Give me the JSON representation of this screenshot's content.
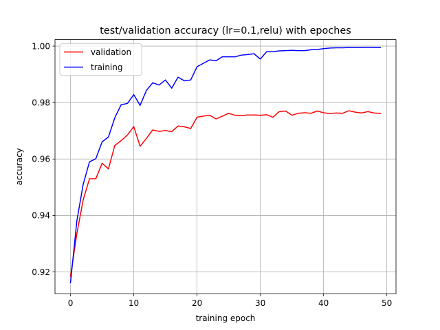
{
  "chart_data": {
    "type": "line",
    "title": "test/validation accuracy (lr=0.1,relu) with epoches",
    "xlabel": "training epoch",
    "ylabel": "accuracy",
    "xlim": [
      -2.45,
      51.45
    ],
    "ylim": [
      0.9123,
      1.0023
    ],
    "xticks": [
      0,
      10,
      20,
      30,
      40,
      50
    ],
    "xtick_labels": [
      "0",
      "10",
      "20",
      "30",
      "40",
      "50"
    ],
    "yticks": [
      0.92,
      0.94,
      0.96,
      0.98,
      1.0
    ],
    "ytick_labels": [
      "0.92",
      "0.94",
      "0.96",
      "0.98",
      "1.00"
    ],
    "grid": true,
    "legend_position": "top-left",
    "x": [
      0,
      1,
      2,
      3,
      4,
      5,
      6,
      7,
      8,
      9,
      10,
      11,
      12,
      13,
      14,
      15,
      16,
      17,
      18,
      19,
      20,
      21,
      22,
      23,
      24,
      25,
      26,
      27,
      28,
      29,
      30,
      31,
      32,
      33,
      34,
      35,
      36,
      37,
      38,
      39,
      40,
      41,
      42,
      43,
      44,
      45,
      46,
      47,
      48,
      49
    ],
    "series": [
      {
        "name": "validation",
        "color": "#ff0000",
        "values": [
          0.9184,
          0.9335,
          0.9455,
          0.953,
          0.953,
          0.9585,
          0.9565,
          0.9648,
          0.9665,
          0.9685,
          0.9715,
          0.9645,
          0.9673,
          0.9703,
          0.9698,
          0.9701,
          0.9697,
          0.9717,
          0.9714,
          0.9708,
          0.9748,
          0.9752,
          0.9755,
          0.9742,
          0.9752,
          0.9762,
          0.9755,
          0.9754,
          0.9756,
          0.9756,
          0.9755,
          0.9757,
          0.9748,
          0.9768,
          0.977,
          0.9755,
          0.9762,
          0.9764,
          0.9762,
          0.977,
          0.9764,
          0.9761,
          0.9763,
          0.9762,
          0.9771,
          0.9766,
          0.9763,
          0.9768,
          0.9763,
          0.9762
        ]
      },
      {
        "name": "training",
        "color": "#0000ff",
        "values": [
          0.9162,
          0.938,
          0.951,
          0.959,
          0.9601,
          0.9661,
          0.9678,
          0.9746,
          0.9792,
          0.9797,
          0.9828,
          0.979,
          0.9843,
          0.987,
          0.9862,
          0.988,
          0.9851,
          0.989,
          0.9877,
          0.988,
          0.9927,
          0.9939,
          0.9951,
          0.9948,
          0.9962,
          0.9962,
          0.9962,
          0.9968,
          0.997,
          0.9973,
          0.9954,
          0.998,
          0.998,
          0.9983,
          0.9984,
          0.9985,
          0.9984,
          0.9984,
          0.9987,
          0.9988,
          0.9991,
          0.9993,
          0.9994,
          0.9994,
          0.9995,
          0.9995,
          0.9995,
          0.9996,
          0.9995,
          0.9995
        ]
      }
    ]
  }
}
